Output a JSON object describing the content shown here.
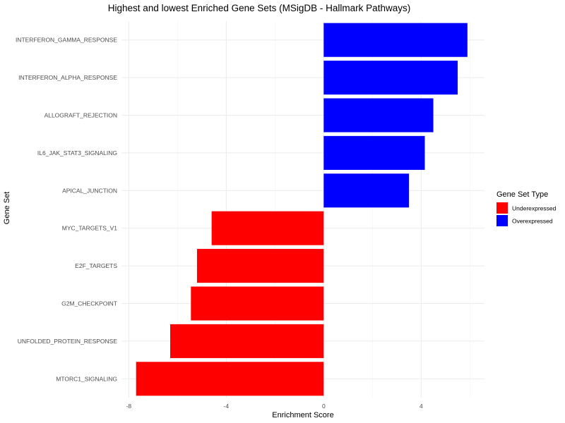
{
  "chart_data": {
    "type": "bar",
    "orientation": "horizontal",
    "title": "Highest and lowest Enriched Gene Sets (MSigDB - Hallmark Pathways)",
    "xlabel": "Enrichment Score",
    "ylabel": "Gene Set",
    "xlim": [
      -8.3,
      6.6
    ],
    "xticks": [
      -8,
      -4,
      0,
      4
    ],
    "xtick_labels": [
      "-8",
      "-4",
      "0",
      "4"
    ],
    "grid": true,
    "categories": [
      "INTERFERON_GAMMA_RESPONSE",
      "INTERFERON_ALPHA_RESPONSE",
      "ALLOGRAFT_REJECTION",
      "IL6_JAK_STAT3_SIGNALING",
      "APICAL_JUNCTION",
      "MYC_TARGETS_V1",
      "E2F_TARGETS",
      "G2M_CHECKPOINT",
      "UNFOLDED_PROTEIN_RESPONSE",
      "MTORC1_SIGNALING"
    ],
    "values": [
      5.9,
      5.5,
      4.5,
      4.15,
      3.5,
      -4.6,
      -5.2,
      -5.45,
      -6.3,
      -7.7
    ],
    "groups": [
      "Overexpressed",
      "Overexpressed",
      "Overexpressed",
      "Overexpressed",
      "Overexpressed",
      "Underexpressed",
      "Underexpressed",
      "Underexpressed",
      "Underexpressed",
      "Underexpressed"
    ],
    "legend": {
      "title": "Gene Set Type",
      "position": "right",
      "entries": [
        {
          "label": "Underexpressed",
          "color": "#ff0000"
        },
        {
          "label": "Overexpressed",
          "color": "#0000ff"
        }
      ]
    }
  }
}
